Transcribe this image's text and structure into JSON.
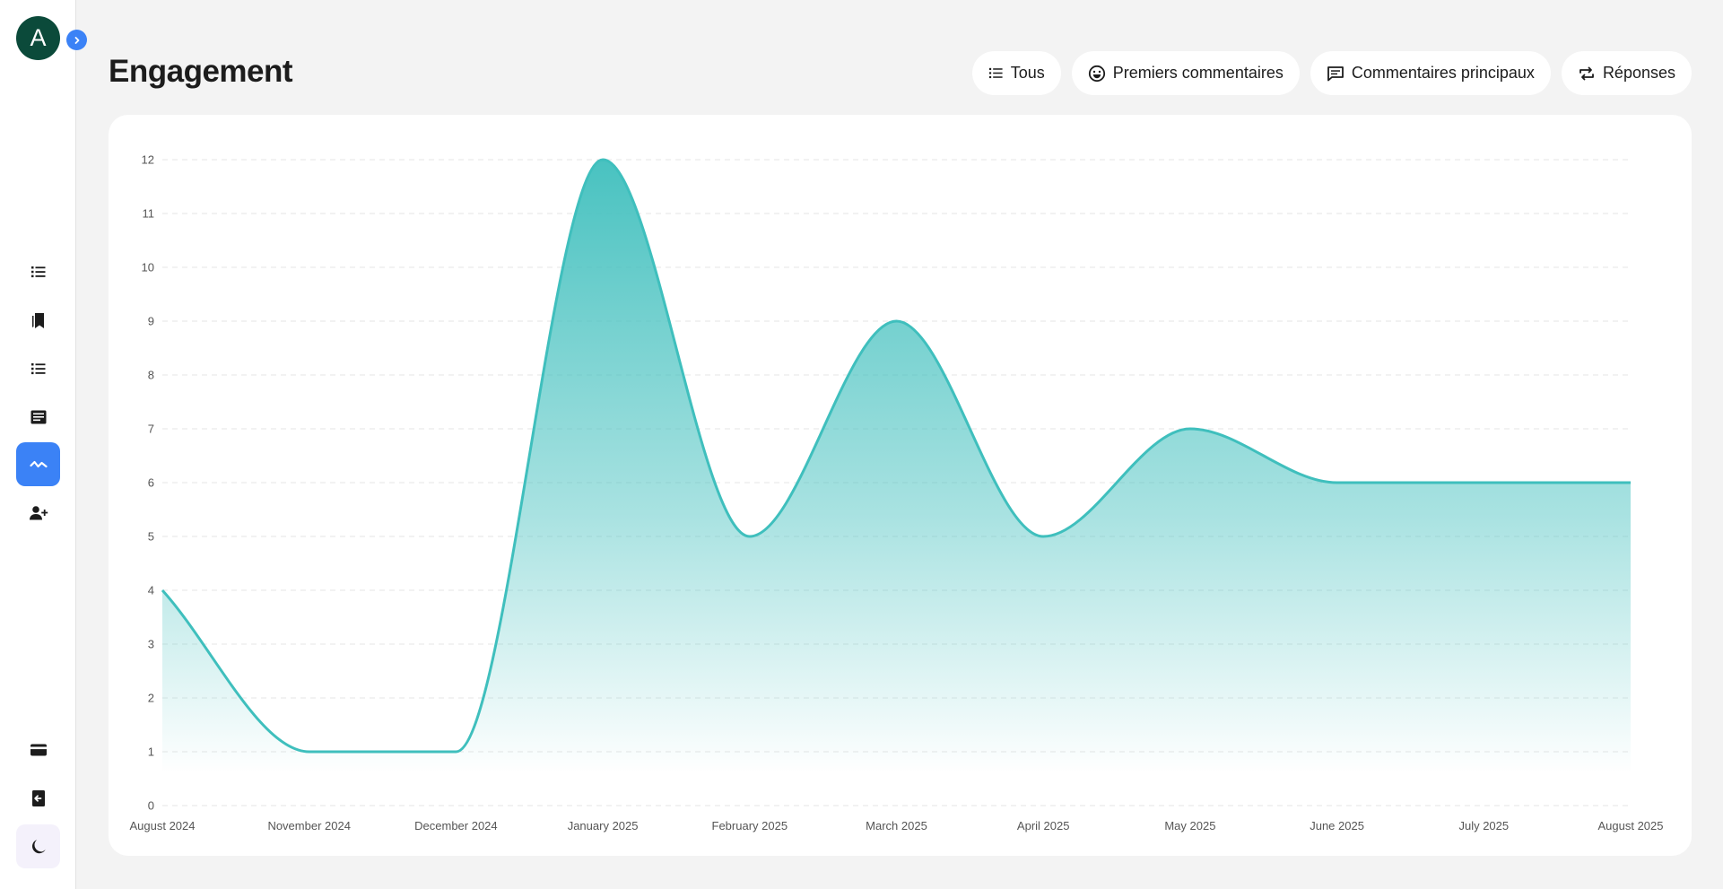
{
  "sidebar": {
    "avatar_letter": "A",
    "items": [
      {
        "icon": "list-icon"
      },
      {
        "icon": "bookmarks-icon"
      },
      {
        "icon": "list-icon"
      },
      {
        "icon": "article-icon"
      },
      {
        "icon": "activity-icon",
        "active": true
      },
      {
        "icon": "person-add-icon"
      },
      {
        "icon": "credit-card-icon"
      },
      {
        "icon": "logout-icon"
      },
      {
        "icon": "moon-icon"
      }
    ]
  },
  "header": {
    "title": "Engagement"
  },
  "filters": [
    {
      "label": "Tous",
      "icon": "list-icon"
    },
    {
      "label": "Premiers commentaires",
      "icon": "smile-icon"
    },
    {
      "label": "Commentaires principaux",
      "icon": "comment-icon"
    },
    {
      "label": "Réponses",
      "icon": "repost-icon"
    }
  ],
  "colors": {
    "accent": "#3b82f6",
    "line": "#3fbfbd",
    "avatar": "#0b4a3a"
  },
  "chart_data": {
    "type": "area",
    "categories": [
      "August 2024",
      "November 2024",
      "December 2024",
      "January 2025",
      "February 2025",
      "March 2025",
      "April 2025",
      "May 2025",
      "June 2025",
      "July 2025",
      "August 2025"
    ],
    "values": [
      4,
      1,
      1,
      12,
      5,
      9,
      5,
      7,
      6,
      6,
      6
    ],
    "ylim": [
      0,
      12
    ],
    "yticks": [
      0,
      1,
      2,
      3,
      4,
      5,
      6,
      7,
      8,
      9,
      10,
      11,
      12
    ],
    "grid": true,
    "title": "",
    "xlabel": "",
    "ylabel": ""
  }
}
